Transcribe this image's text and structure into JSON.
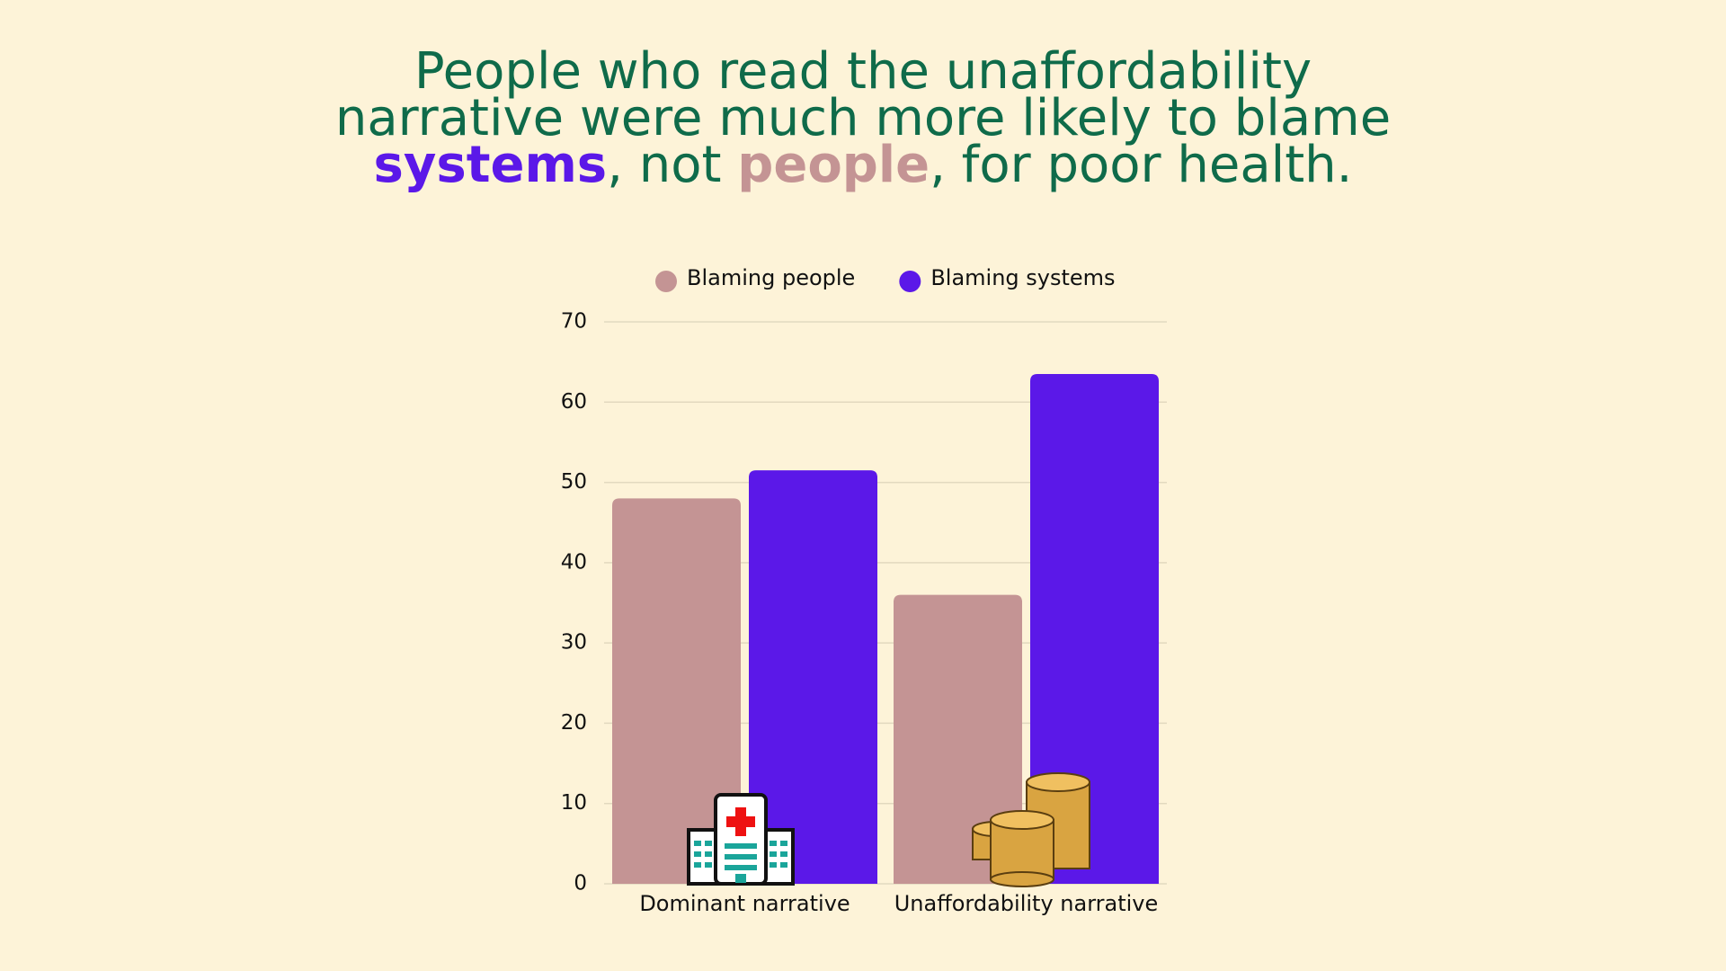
{
  "chart_data": {
    "type": "bar",
    "title_lines": [
      [
        {
          "text": "People who read the unaffordability",
          "color": "#0f6b4a",
          "bold": false
        }
      ],
      [
        {
          "text": "narrative were much more likely to blame",
          "color": "#0f6b4a",
          "bold": false
        }
      ],
      [
        {
          "text": "systems",
          "color": "#5b18e8",
          "bold": true
        },
        {
          "text": ", not ",
          "color": "#0f6b4a",
          "bold": false
        },
        {
          "text": "people",
          "color": "#c49494",
          "bold": true
        },
        {
          "text": ", for poor health.",
          "color": "#0f6b4a",
          "bold": false
        }
      ]
    ],
    "categories": [
      "Dominant narrative",
      "Unaffordability narrative"
    ],
    "series": [
      {
        "name": "Blaming people",
        "color": "#c49494",
        "values": [
          48,
          36
        ]
      },
      {
        "name": "Blaming systems",
        "color": "#5b18e8",
        "values": [
          51.5,
          63.5
        ]
      }
    ],
    "ylim": [
      0,
      70
    ],
    "yticks": [
      0,
      10,
      20,
      30,
      40,
      50,
      60,
      70
    ],
    "grid": true,
    "legend": "top"
  }
}
